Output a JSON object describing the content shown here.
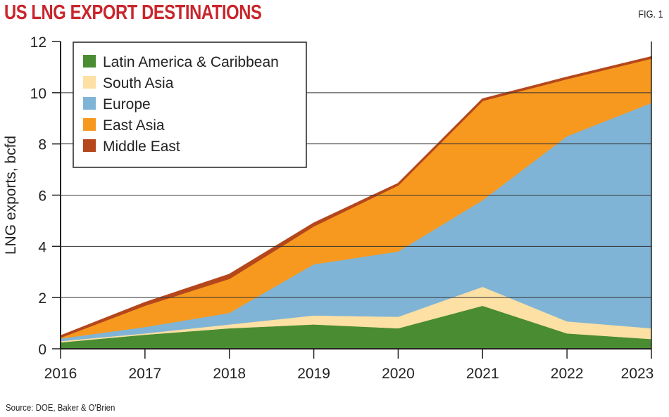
{
  "header": {
    "title": "US LNG EXPORT DESTINATIONS",
    "fig_label": "FIG. 1"
  },
  "footer": {
    "source": "Source: DOE, Baker & O'Brien"
  },
  "chart_data": {
    "type": "area",
    "stacked": true,
    "title": "US LNG EXPORT DESTINATIONS",
    "xlabel": "",
    "ylabel": "LNG exports, bcfd",
    "x": [
      2016,
      2017,
      2018,
      2019,
      2020,
      2021,
      2022,
      2023
    ],
    "xticks": [
      "2016",
      "2017",
      "2018",
      "2019",
      "2020",
      "2021",
      "2022",
      "2023"
    ],
    "ylim": [
      0,
      12
    ],
    "yticks": [
      "0",
      "2",
      "4",
      "6",
      "8",
      "10",
      "12"
    ],
    "grid": "horizontal",
    "legend_position": "top-left",
    "series": [
      {
        "name": "Latin America & Caribbean",
        "color": "#4a8c32",
        "values": [
          0.25,
          0.55,
          0.8,
          0.95,
          0.8,
          1.68,
          0.6,
          0.38
        ]
      },
      {
        "name": "South Asia",
        "color": "#fde0a4",
        "values": [
          0.05,
          0.05,
          0.15,
          0.35,
          0.45,
          0.74,
          0.47,
          0.42
        ]
      },
      {
        "name": "Europe",
        "color": "#80b4d6",
        "values": [
          0.1,
          0.25,
          0.45,
          2.0,
          2.55,
          3.38,
          7.23,
          8.8
        ]
      },
      {
        "name": "East Asia",
        "color": "#f7991f",
        "values": [
          0.05,
          0.85,
          1.35,
          1.5,
          2.6,
          3.9,
          2.25,
          1.75
        ]
      },
      {
        "name": "Middle East",
        "color": "#b5471c",
        "values": [
          0.05,
          0.1,
          0.15,
          0.1,
          0.05,
          0.05,
          0.05,
          0.05
        ]
      }
    ]
  }
}
